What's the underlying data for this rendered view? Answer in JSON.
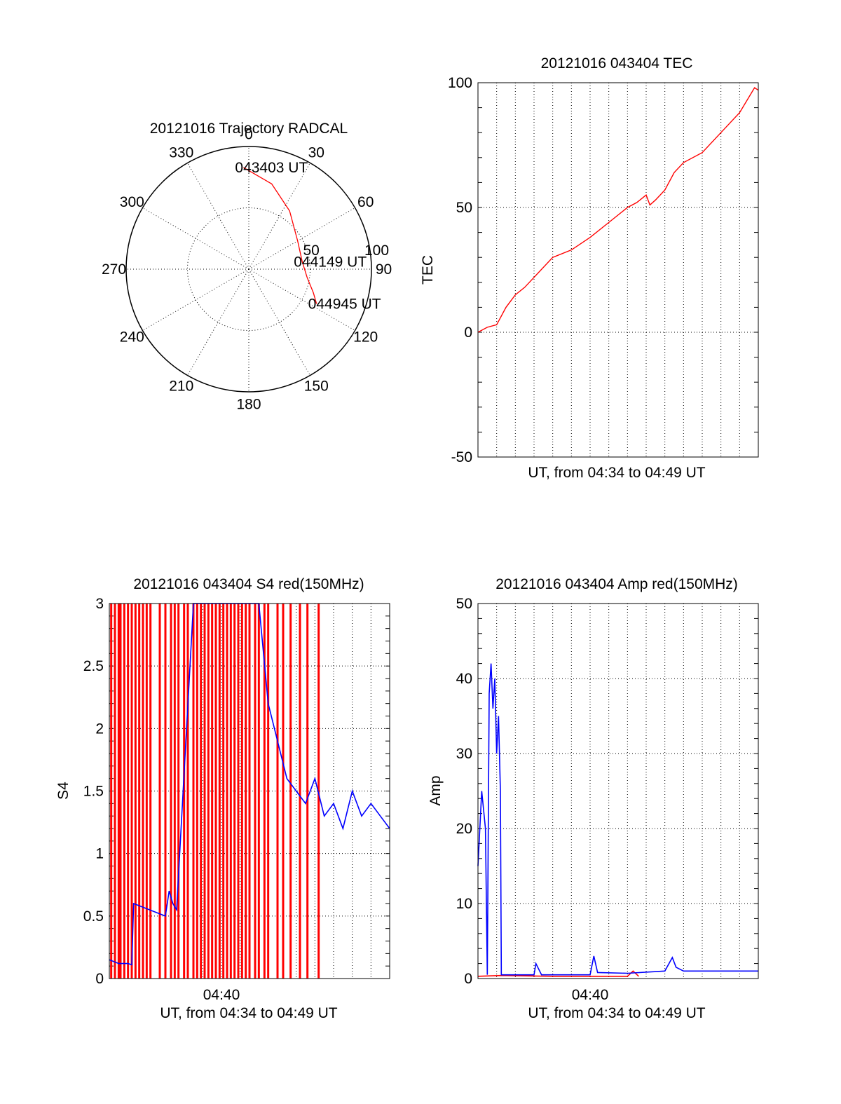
{
  "chart_data": [
    {
      "id": "polar",
      "type": "scatter",
      "title": "20121016 Trajectory RADCAL",
      "azimuth_labels": [
        "0",
        "30",
        "60",
        "90",
        "120",
        "150",
        "180",
        "210",
        "240",
        "270",
        "300",
        "330"
      ],
      "radial_labels": [
        "50",
        "100"
      ],
      "rlim": [
        0,
        100
      ],
      "grid": true,
      "series": [
        {
          "color": "#ff0000",
          "points": [
            {
              "az": 357,
              "r": 83
            },
            {
              "az": 15,
              "r": 72
            },
            {
              "az": 35,
              "r": 58
            },
            {
              "az": 60,
              "r": 46
            },
            {
              "az": 82,
              "r": 44
            },
            {
              "az": 98,
              "r": 48
            },
            {
              "az": 110,
              "r": 56
            },
            {
              "az": 117,
              "r": 62
            }
          ]
        }
      ],
      "annotations": [
        {
          "text": "043403 UT",
          "az": 357,
          "r": 83
        },
        {
          "text": "044149 UT",
          "az": 82,
          "r": 44
        },
        {
          "text": "044945 UT",
          "az": 117,
          "r": 62
        }
      ]
    },
    {
      "id": "tec",
      "type": "line",
      "title": "20121016 043404 TEC",
      "xlabel": "UT, from 04:34 to 04:49 UT",
      "ylabel": "TEC",
      "xlim": [
        0,
        15
      ],
      "ylim": [
        -50,
        100
      ],
      "yticks": [
        -50,
        0,
        50,
        100
      ],
      "grid": true,
      "series": [
        {
          "color": "#ff0000",
          "x": [
            0,
            0.5,
            1,
            1.5,
            2,
            2.5,
            3,
            4,
            5,
            6,
            7,
            8,
            8.5,
            9,
            9.2,
            9.5,
            10,
            10.5,
            11,
            12,
            13,
            14,
            14.8,
            15
          ],
          "y": [
            0,
            2,
            3,
            10,
            15,
            18,
            22,
            30,
            33,
            38,
            44,
            50,
            52,
            55,
            51,
            53,
            57,
            64,
            68,
            72,
            80,
            88,
            98,
            97
          ]
        }
      ]
    },
    {
      "id": "s4",
      "type": "line",
      "title": "20121016 043404 S4 red(150MHz)",
      "xlabel": "UT, from 04:34 to 04:49 UT",
      "ylabel": "S4",
      "xlim": [
        0,
        15
      ],
      "ylim": [
        0,
        3
      ],
      "yticks": [
        0,
        0.5,
        1,
        1.5,
        2,
        2.5,
        3
      ],
      "ytick_labels": [
        "0",
        "0.5",
        "1",
        "1.5",
        "2",
        "2.5",
        "3"
      ],
      "xticks": [
        6
      ],
      "xtick_labels": [
        "04:40"
      ],
      "grid": true,
      "series": [
        {
          "color": "#ff0000",
          "spikes_x": [
            0.1,
            0.3,
            0.5,
            0.6,
            0.8,
            1.0,
            1.2,
            1.4,
            1.6,
            1.8,
            2.0,
            2.2,
            2.7,
            3.0,
            3.3,
            3.5,
            3.7,
            4.0,
            4.2,
            4.5,
            4.7,
            4.9,
            5.1,
            5.3,
            5.5,
            5.7,
            5.9,
            6.1,
            6.3,
            6.5,
            6.7,
            6.9,
            7.1,
            7.3,
            7.5,
            7.8,
            8.0,
            8.3,
            8.5,
            9.0,
            9.3,
            9.7,
            10.2,
            10.6,
            11.2
          ],
          "spikes_top": 3
        },
        {
          "color": "#0000ff",
          "x": [
            0,
            0.5,
            1.0,
            1.2,
            1.3,
            3.0,
            3.2,
            3.4,
            3.6,
            4.5,
            5.0,
            5.5,
            6.0,
            6.5,
            7.0,
            7.5,
            8.0,
            8.5,
            9.0,
            9.5,
            10.0,
            10.5,
            11.0,
            11.5,
            12.0,
            12.5,
            13.0,
            13.5,
            14.0,
            14.5,
            15.0
          ],
          "y": [
            0.15,
            0.12,
            0.12,
            0.11,
            0.6,
            0.5,
            0.7,
            0.6,
            0.55,
            3.0,
            3.0,
            3.0,
            3.0,
            3.0,
            3.0,
            3.0,
            3.0,
            2.2,
            1.9,
            1.6,
            1.5,
            1.4,
            1.6,
            1.3,
            1.4,
            1.2,
            1.5,
            1.3,
            1.4,
            1.3,
            1.2
          ]
        }
      ]
    },
    {
      "id": "amp",
      "type": "line",
      "title": "20121016 043404 Amp red(150MHz)",
      "xlabel": "UT, from 04:34 to 04:49 UT",
      "ylabel": "Amp",
      "xlim": [
        0,
        15
      ],
      "ylim": [
        0,
        50
      ],
      "yticks": [
        0,
        10,
        20,
        30,
        40,
        50
      ],
      "xticks": [
        6
      ],
      "xtick_labels": [
        "04:40"
      ],
      "grid": true,
      "series": [
        {
          "color": "#ff0000",
          "x": [
            0,
            1.2,
            4.0,
            8.0,
            8.3,
            8.6
          ],
          "y": [
            0.3,
            0.4,
            0.3,
            0.3,
            1.0,
            0.3
          ]
        },
        {
          "color": "#0000ff",
          "x": [
            0,
            0.2,
            0.4,
            0.5,
            0.6,
            0.7,
            0.8,
            0.9,
            1.0,
            1.1,
            1.2,
            1.25,
            1.3,
            1.4,
            3.0,
            3.1,
            3.2,
            3.4,
            3.5,
            6.0,
            6.2,
            6.4,
            8.0,
            10.0,
            10.4,
            10.6,
            11.0,
            15.0
          ],
          "y": [
            15,
            25,
            20,
            0.5,
            38,
            42,
            36,
            40,
            30,
            35,
            25,
            0.5,
            0.5,
            0.5,
            0.5,
            2.0,
            1.5,
            0.5,
            0.5,
            0.5,
            3.0,
            0.8,
            0.7,
            1.0,
            2.8,
            1.5,
            1.0,
            1.0
          ]
        }
      ]
    }
  ]
}
